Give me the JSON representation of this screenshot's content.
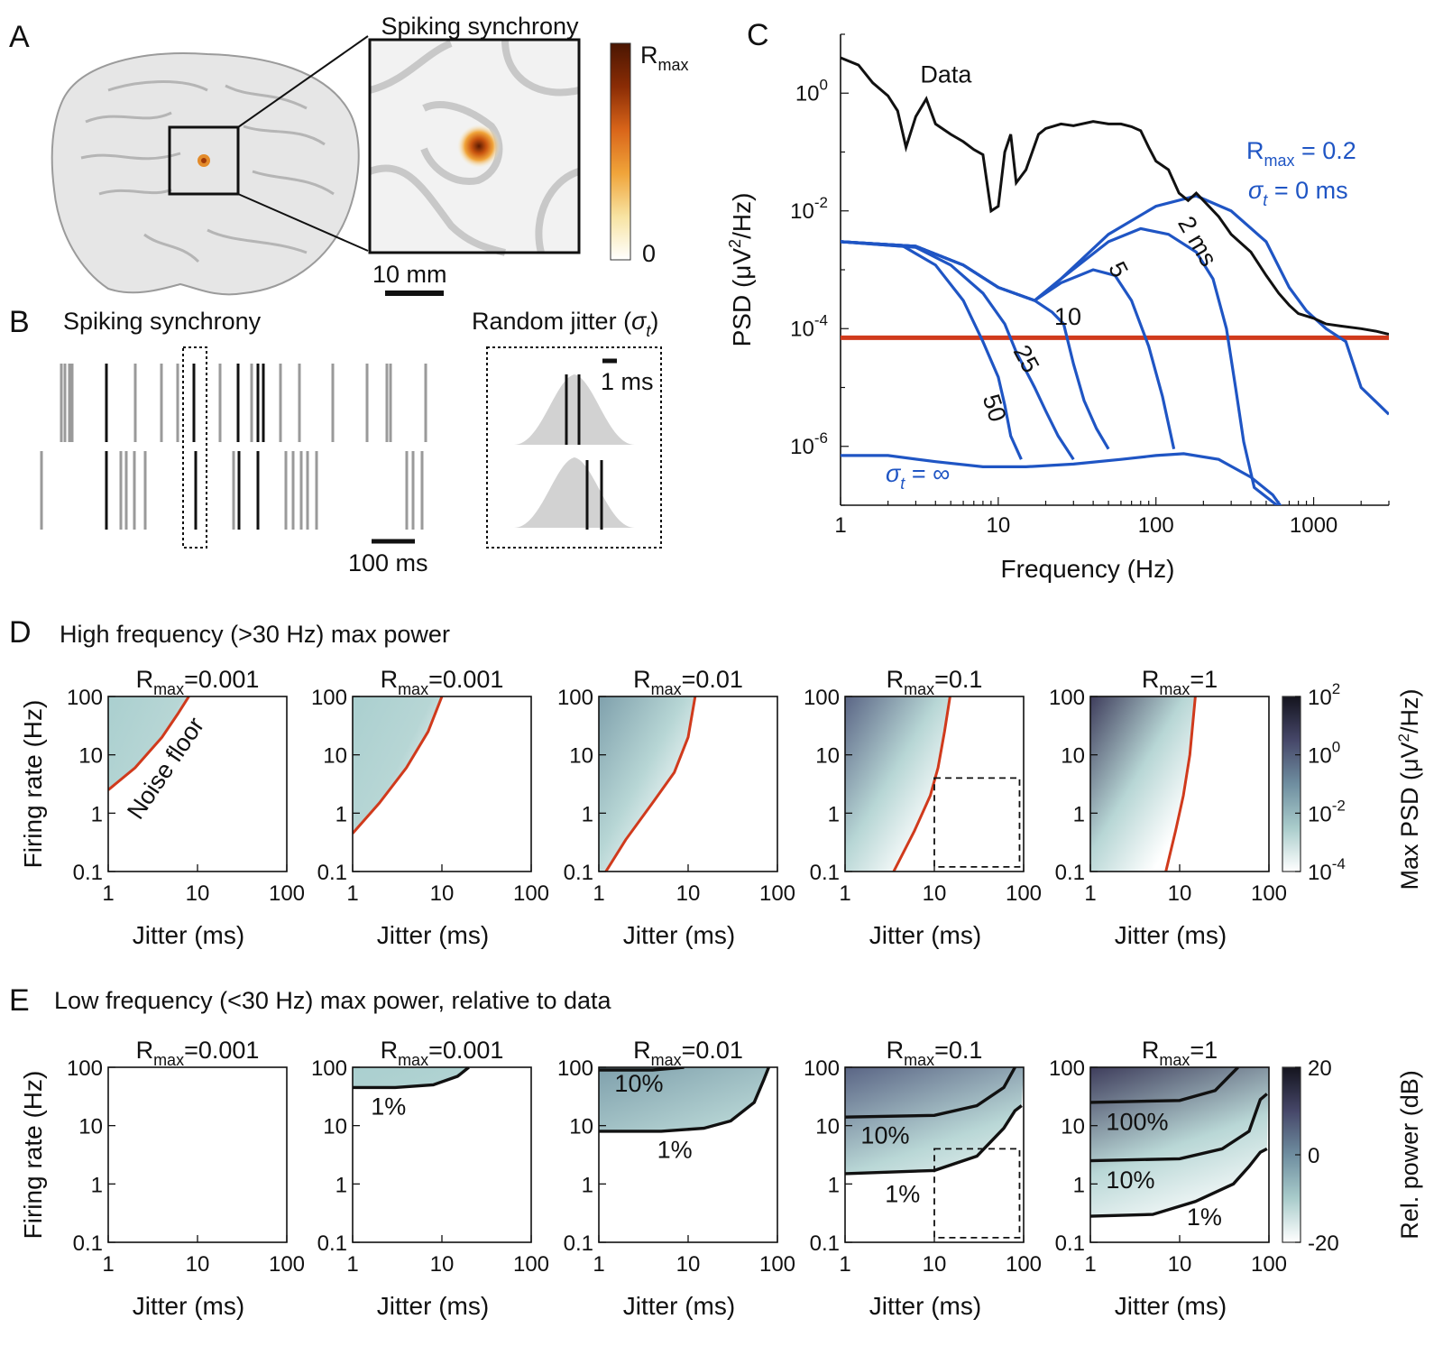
{
  "panel_labels": {
    "a": "A",
    "b": "B",
    "c": "C",
    "d": "D",
    "e": "E"
  },
  "panel_a": {
    "title": "Spiking synchrony",
    "colorbar_label": "R",
    "colorbar_label_sub": "max",
    "colorbar_min": "0",
    "scalebar": "10 mm",
    "colormap": [
      "#ffffff",
      "#f7e3a2",
      "#f0a43a",
      "#d9651a",
      "#8a2c05",
      "#4a1602"
    ]
  },
  "panel_b": {
    "title": "Spiking synchrony",
    "jitter_title": "Random jitter (",
    "jitter_sigma": "σ",
    "jitter_sub": "t",
    "jitter_close": ")",
    "scalebar": "100 ms",
    "inset_scalebar": "1 ms"
  },
  "panel_c": {
    "type": "line",
    "xscale": "log",
    "yscale": "log",
    "xlim": [
      1,
      3000
    ],
    "ylim": [
      1e-07,
      10
    ],
    "xlabel": "Frequency (Hz)",
    "ylabel": "PSD (μV",
    "ylabel_sup": "2",
    "ylabel_tail": "/Hz)",
    "xticks": [
      1,
      10,
      100,
      1000
    ],
    "xticklabels": [
      "1",
      "10",
      "100",
      "1000"
    ],
    "yticks": [
      1,
      0.01,
      0.0001,
      1e-06
    ],
    "yticklabels": [
      {
        "base": "10",
        "exp": "0"
      },
      {
        "base": "10",
        "exp": "-2"
      },
      {
        "base": "10",
        "exp": "-4"
      },
      {
        "base": "10",
        "exp": "-6"
      }
    ],
    "data_label": "Data",
    "rmax_label": "R",
    "rmax_sub": "max",
    "rmax_value": " = 0.2",
    "sigma_label": "σ",
    "sigma_sub": "t",
    "sigma_value": " = 0 ms",
    "sigma_inf_value": " = ∞",
    "jitter_labels": [
      "2 ms",
      "5",
      "10",
      "25",
      "50"
    ],
    "noise_floor_value": 7e-05,
    "colors": {
      "data": "#111111",
      "model": "#1f55c4",
      "noise": "#d03a1c"
    },
    "data_series": [
      [
        1,
        4
      ],
      [
        1.3,
        3
      ],
      [
        1.6,
        1.5
      ],
      [
        2,
        0.9
      ],
      [
        2.3,
        0.5
      ],
      [
        2.6,
        0.12
      ],
      [
        3,
        0.4
      ],
      [
        3.5,
        0.8
      ],
      [
        4,
        0.3
      ],
      [
        5,
        0.2
      ],
      [
        6,
        0.15
      ],
      [
        7,
        0.11
      ],
      [
        8,
        0.09
      ],
      [
        9,
        0.01
      ],
      [
        10,
        0.012
      ],
      [
        11,
        0.1
      ],
      [
        12,
        0.2
      ],
      [
        13,
        0.03
      ],
      [
        15,
        0.05
      ],
      [
        18,
        0.2
      ],
      [
        20,
        0.25
      ],
      [
        25,
        0.3
      ],
      [
        30,
        0.28
      ],
      [
        40,
        0.33
      ],
      [
        50,
        0.3
      ],
      [
        60,
        0.3
      ],
      [
        70,
        0.27
      ],
      [
        80,
        0.23
      ],
      [
        90,
        0.12
      ],
      [
        100,
        0.07
      ],
      [
        120,
        0.05
      ],
      [
        140,
        0.02
      ],
      [
        160,
        0.015
      ],
      [
        180,
        0.02
      ],
      [
        200,
        0.015
      ],
      [
        250,
        0.008
      ],
      [
        300,
        0.004
      ],
      [
        400,
        0.002
      ],
      [
        500,
        0.0008
      ],
      [
        600,
        0.0004
      ],
      [
        700,
        0.00025
      ],
      [
        800,
        0.00018
      ],
      [
        1000,
        0.00015
      ],
      [
        1200,
        0.00012
      ],
      [
        1500,
        0.00011
      ],
      [
        2000,
        0.0001
      ],
      [
        2500,
        9e-05
      ],
      [
        3000,
        8e-05
      ]
    ],
    "model_series": [
      {
        "sigma_ms": 0,
        "points": [
          [
            1,
            0.003
          ],
          [
            3,
            0.0025
          ],
          [
            6,
            0.0012
          ],
          [
            10,
            0.0005
          ],
          [
            17,
            0.0003
          ],
          [
            25,
            0.0007
          ],
          [
            50,
            0.004
          ],
          [
            100,
            0.012
          ],
          [
            180,
            0.018
          ],
          [
            300,
            0.01
          ],
          [
            500,
            0.003
          ],
          [
            700,
            0.0005
          ],
          [
            900,
            0.0002
          ],
          [
            1200,
            0.0001
          ],
          [
            1600,
            6e-05
          ],
          [
            2000,
            1e-05
          ],
          [
            3000,
            3.5e-06
          ]
        ]
      },
      {
        "sigma_ms": 2,
        "points": [
          [
            1,
            0.003
          ],
          [
            3,
            0.0025
          ],
          [
            6,
            0.0012
          ],
          [
            10,
            0.0005
          ],
          [
            17,
            0.0003
          ],
          [
            25,
            0.0007
          ],
          [
            50,
            0.003
          ],
          [
            80,
            0.005
          ],
          [
            120,
            0.004
          ],
          [
            180,
            0.002
          ],
          [
            230,
            0.0007
          ],
          [
            280,
            0.0001
          ],
          [
            320,
            1e-05
          ],
          [
            360,
            1.2e-06
          ],
          [
            420,
            2e-07
          ],
          [
            650,
            8e-08
          ]
        ]
      },
      {
        "sigma_ms": 5,
        "points": [
          [
            1,
            0.003
          ],
          [
            3,
            0.0025
          ],
          [
            6,
            0.0012
          ],
          [
            10,
            0.0005
          ],
          [
            17,
            0.0003
          ],
          [
            25,
            0.0006
          ],
          [
            40,
            0.001
          ],
          [
            55,
            0.0008
          ],
          [
            70,
            0.0003
          ],
          [
            90,
            5e-05
          ],
          [
            110,
            7e-06
          ],
          [
            130,
            9e-07
          ]
        ]
      },
      {
        "sigma_ms": 10,
        "points": [
          [
            1,
            0.003
          ],
          [
            3,
            0.0025
          ],
          [
            6,
            0.0012
          ],
          [
            10,
            0.0005
          ],
          [
            17,
            0.0003
          ],
          [
            22,
            0.00019
          ],
          [
            26,
            0.00012
          ],
          [
            30,
            2.5e-05
          ],
          [
            35,
            6e-06
          ],
          [
            42,
            2e-06
          ],
          [
            50,
            9e-07
          ]
        ]
      },
      {
        "sigma_ms": 25,
        "points": [
          [
            1,
            0.003
          ],
          [
            3,
            0.0024
          ],
          [
            5,
            0.0012
          ],
          [
            8,
            0.0004
          ],
          [
            11,
            0.00012
          ],
          [
            13,
            4e-05
          ],
          [
            17,
            1e-05
          ],
          [
            20,
            4e-06
          ],
          [
            24,
            1.5e-06
          ],
          [
            30,
            6e-07
          ]
        ]
      },
      {
        "sigma_ms": 50,
        "points": [
          [
            1,
            0.003
          ],
          [
            2.5,
            0.0025
          ],
          [
            4,
            0.0012
          ],
          [
            6,
            0.0003
          ],
          [
            8,
            6e-05
          ],
          [
            10,
            1.5e-05
          ],
          [
            11,
            5e-06
          ],
          [
            12,
            1.5e-06
          ],
          [
            14,
            6e-07
          ]
        ]
      },
      {
        "sigma_ms": "inf",
        "points": [
          [
            1,
            7e-07
          ],
          [
            2,
            7e-07
          ],
          [
            4,
            5.5e-07
          ],
          [
            8,
            4.5e-07
          ],
          [
            15,
            4.5e-07
          ],
          [
            30,
            5e-07
          ],
          [
            60,
            6e-07
          ],
          [
            100,
            7e-07
          ],
          [
            150,
            7.5e-07
          ],
          [
            250,
            6e-07
          ],
          [
            400,
            3e-07
          ],
          [
            550,
            1.5e-07
          ],
          [
            650,
            8e-08
          ]
        ]
      }
    ]
  },
  "panel_d": {
    "title": "High frequency (>30 Hz) max power",
    "xlabel": "Jitter (ms)",
    "ylabel": "Firing rate (Hz)",
    "xticklabels": [
      "1",
      "10",
      "100"
    ],
    "yticklabels": [
      "100",
      "10",
      "1",
      "0.1"
    ],
    "noise_floor_label": "Noise floor",
    "subplot_titles": [
      "0.001",
      "0.001",
      "0.01",
      "0.1",
      "1"
    ],
    "rmax_prefix": "R",
    "rmax_sub": "max",
    "rmax_eq": "=",
    "colorbar_label": "Max PSD (μV",
    "colorbar_label_sup": "2",
    "colorbar_label_tail": "/Hz)",
    "colorbar_ticks": [
      {
        "base": "10",
        "exp": "2"
      },
      {
        "base": "10",
        "exp": "0"
      },
      {
        "base": "10",
        "exp": "-2"
      },
      {
        "base": "10",
        "exp": "-4"
      }
    ],
    "colorbar_colors": [
      "#ffffff",
      "#a9cccb",
      "#6f8ea0",
      "#464769",
      "#14141e"
    ],
    "noise_floor_curves": [
      [
        [
          1,
          2.5
        ],
        [
          2,
          6
        ],
        [
          4,
          20
        ],
        [
          6,
          50
        ],
        [
          8,
          100
        ]
      ],
      [
        [
          1,
          0.45
        ],
        [
          2,
          1.5
        ],
        [
          4,
          6
        ],
        [
          7,
          25
        ],
        [
          10,
          100
        ]
      ],
      [
        [
          1.2,
          0.1
        ],
        [
          2,
          0.35
        ],
        [
          4,
          1.5
        ],
        [
          7,
          5
        ],
        [
          10,
          20
        ],
        [
          12,
          100
        ]
      ],
      [
        [
          3.5,
          0.1
        ],
        [
          6,
          0.5
        ],
        [
          9,
          2
        ],
        [
          11,
          6
        ],
        [
          13,
          25
        ],
        [
          15,
          100
        ]
      ],
      [
        [
          7,
          0.1
        ],
        [
          9,
          0.5
        ],
        [
          11,
          2
        ],
        [
          13,
          10
        ],
        [
          15,
          100
        ]
      ]
    ],
    "shade_intensity": [
      0.35,
      0.45,
      0.7,
      0.85,
      1.0
    ],
    "dashed_box": {
      "subplot": 3,
      "x": [
        10,
        90
      ],
      "y": [
        0.12,
        4
      ]
    }
  },
  "panel_e": {
    "title": "Low frequency (<30 Hz) max power, relative to data",
    "xlabel": "Jitter (ms)",
    "ylabel": "Firing rate (Hz)",
    "xticklabels": [
      "1",
      "10",
      "100"
    ],
    "yticklabels": [
      "100",
      "10",
      "1",
      "0.1"
    ],
    "subplot_titles": [
      "0.001",
      "0.001",
      "0.01",
      "0.1",
      "1"
    ],
    "rmax_prefix": "R",
    "rmax_sub": "max",
    "rmax_eq": "=",
    "colorbar_label": "Rel. power (dB)",
    "colorbar_ticks": [
      "20",
      "0",
      "-20"
    ],
    "colorbar_colors": [
      "#ffffff",
      "#a9cccb",
      "#6f8ea0",
      "#464769",
      "#14141e"
    ],
    "contours": [
      [],
      [
        {
          "label": "1%",
          "label_at": [
            1.6,
            22
          ],
          "points": [
            [
              1,
              45
            ],
            [
              3,
              45
            ],
            [
              8,
              50
            ],
            [
              15,
              70
            ],
            [
              20,
              100
            ]
          ]
        }
      ],
      [
        {
          "label": "10%",
          "label_at": [
            1.5,
            55
          ],
          "points": [
            [
              1,
              90
            ],
            [
              4,
              90
            ],
            [
              9,
              100
            ]
          ]
        },
        {
          "label": "1%",
          "label_at": [
            4.5,
            4
          ],
          "points": [
            [
              1,
              8
            ],
            [
              5,
              8
            ],
            [
              15,
              9
            ],
            [
              30,
              12
            ],
            [
              55,
              25
            ],
            [
              70,
              60
            ],
            [
              80,
              100
            ]
          ]
        }
      ],
      [
        {
          "label": "10%",
          "label_at": [
            1.5,
            7
          ],
          "points": [
            [
              1,
              14
            ],
            [
              10,
              15
            ],
            [
              30,
              22
            ],
            [
              60,
              45
            ],
            [
              80,
              100
            ]
          ]
        },
        {
          "label": "1%",
          "label_at": [
            2.8,
            0.7
          ],
          "points": [
            [
              1,
              1.5
            ],
            [
              10,
              1.7
            ],
            [
              30,
              3
            ],
            [
              60,
              9
            ],
            [
              80,
              18
            ],
            [
              95,
              22
            ]
          ]
        }
      ],
      [
        {
          "label": "100%",
          "label_at": [
            1.5,
            12
          ],
          "points": [
            [
              1,
              25
            ],
            [
              10,
              27
            ],
            [
              25,
              40
            ],
            [
              45,
              100
            ]
          ]
        },
        {
          "label": "10%",
          "label_at": [
            1.5,
            1.2
          ],
          "points": [
            [
              1,
              2.5
            ],
            [
              10,
              2.7
            ],
            [
              30,
              4
            ],
            [
              60,
              8
            ],
            [
              80,
              28
            ],
            [
              95,
              35
            ]
          ]
        },
        {
          "label": "1%",
          "label_at": [
            12,
            0.28
          ],
          "points": [
            [
              1,
              0.28
            ],
            [
              5,
              0.3
            ],
            [
              15,
              0.5
            ],
            [
              40,
              1
            ],
            [
              60,
              2
            ],
            [
              80,
              3.5
            ],
            [
              95,
              4
            ]
          ]
        }
      ]
    ],
    "shade_intensity": [
      0.0,
      0.3,
      0.55,
      0.78,
      1.0
    ],
    "dashed_box": {
      "subplot": 3,
      "x": [
        10,
        90
      ],
      "y": [
        0.12,
        4
      ]
    }
  }
}
